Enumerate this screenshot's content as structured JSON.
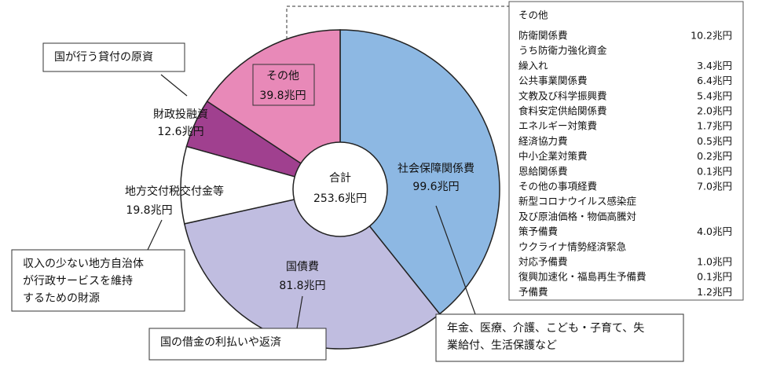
{
  "chart_data": {
    "type": "pie",
    "categories": [
      "社会保障関係費",
      "国債費",
      "地方交付税交付金等",
      "財政投融資",
      "その他"
    ],
    "values": [
      99.6,
      81.8,
      19.8,
      12.6,
      39.8
    ],
    "value_labels": [
      "99.6兆円",
      "81.8兆円",
      "19.8兆円",
      "12.6兆円",
      "39.8兆円"
    ],
    "colors": [
      "#8db8e3",
      "#c0bde0",
      "#ffffff",
      "#a0408f",
      "#e889b8"
    ],
    "total": {
      "name": "合計",
      "value": 253.6,
      "value_label": "253.6兆円"
    },
    "callouts": [
      "年金、医療、介護、こども・子育て、失業給付、生活保護など",
      "国の借金の利払いや返済",
      "収入の少ない地方自治体が行政サービスを維持するための財源",
      "国が行う貸付の原資"
    ],
    "breakdown": {
      "title": "その他",
      "items": [
        {
          "name": [
            "防衛関係費"
          ],
          "value": "10.2兆円"
        },
        {
          "name": [
            "うち防衛力強化資金",
            "繰入れ"
          ],
          "value": "3.4兆円"
        },
        {
          "name": [
            "公共事業関係費"
          ],
          "value": "6.4兆円"
        },
        {
          "name": [
            "文教及び科学振興費"
          ],
          "value": "5.4兆円"
        },
        {
          "name": [
            "食料安定供給関係費"
          ],
          "value": "2.0兆円"
        },
        {
          "name": [
            "エネルギー対策費"
          ],
          "value": "1.7兆円"
        },
        {
          "name": [
            "経済協力費"
          ],
          "value": "0.5兆円"
        },
        {
          "name": [
            "中小企業対策費"
          ],
          "value": "0.2兆円"
        },
        {
          "name": [
            "恩給関係費"
          ],
          "value": "0.1兆円"
        },
        {
          "name": [
            "その他の事項経費"
          ],
          "value": "7.0兆円"
        },
        {
          "name": [
            "新型コロナウイルス感染症",
            "及び原油価格・物価高騰対",
            "策予備費"
          ],
          "value": "4.0兆円"
        },
        {
          "name": [
            "ウクライナ情勢経済緊急",
            "対応予備費"
          ],
          "value": "1.0兆円"
        },
        {
          "name": [
            "復興加速化・福島再生予備費"
          ],
          "value": "0.1兆円"
        },
        {
          "name": [
            "予備費"
          ],
          "value": "1.2兆円"
        }
      ]
    }
  }
}
